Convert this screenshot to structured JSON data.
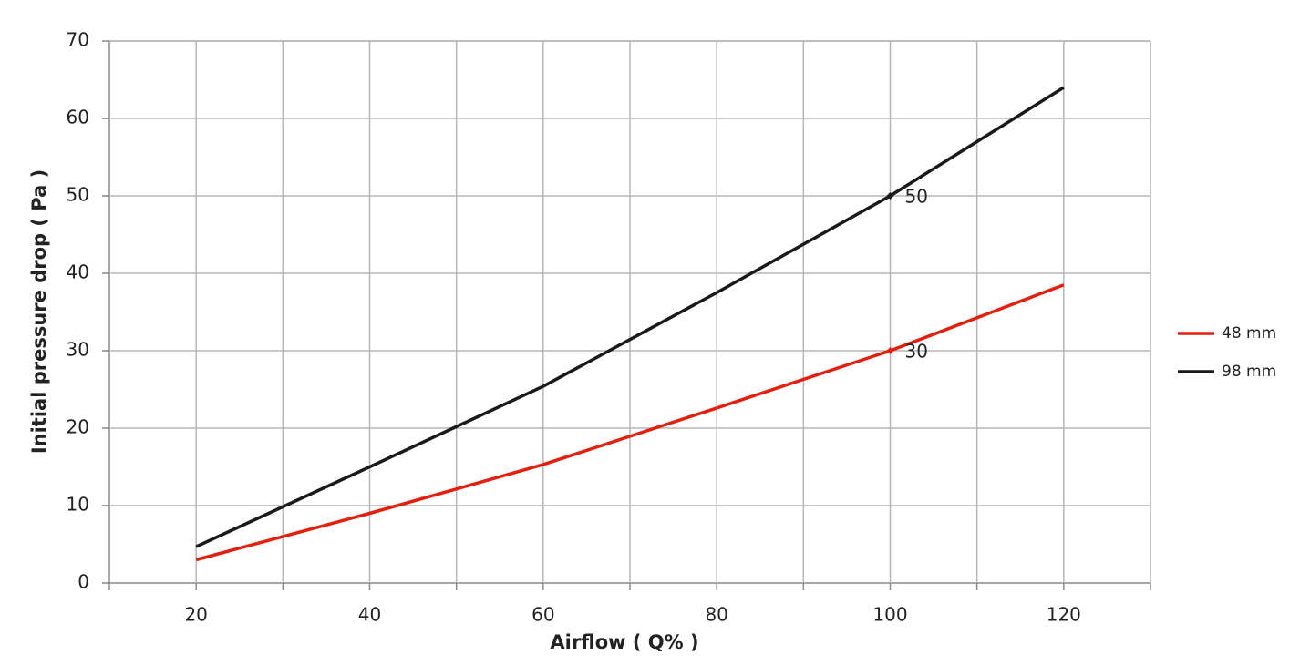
{
  "chart_data": {
    "type": "line",
    "x_label": "Airflow  ( Q% )",
    "y_label": "Initial pressure drop ( Pa )",
    "x": [
      20,
      40,
      60,
      80,
      100,
      120
    ],
    "series": [
      {
        "name": "48 mm",
        "color": "#e3200f",
        "values": [
          3,
          9,
          15.3,
          22.6,
          30,
          38.5
        ],
        "value_labels": [
          null,
          null,
          null,
          null,
          "30",
          null
        ]
      },
      {
        "name": "98 mm",
        "color": "#1a1a1a",
        "values": [
          4.7,
          15,
          25.4,
          37.5,
          50,
          64
        ],
        "value_labels": [
          null,
          null,
          null,
          null,
          "50",
          null
        ]
      }
    ],
    "xlim": [
      10,
      130
    ],
    "xticks": [
      20,
      40,
      60,
      80,
      100,
      120
    ],
    "ylim": [
      0,
      70
    ],
    "yticks": [
      0,
      10,
      20,
      30,
      40,
      50,
      60,
      70
    ],
    "grid": true,
    "legend": "right"
  }
}
